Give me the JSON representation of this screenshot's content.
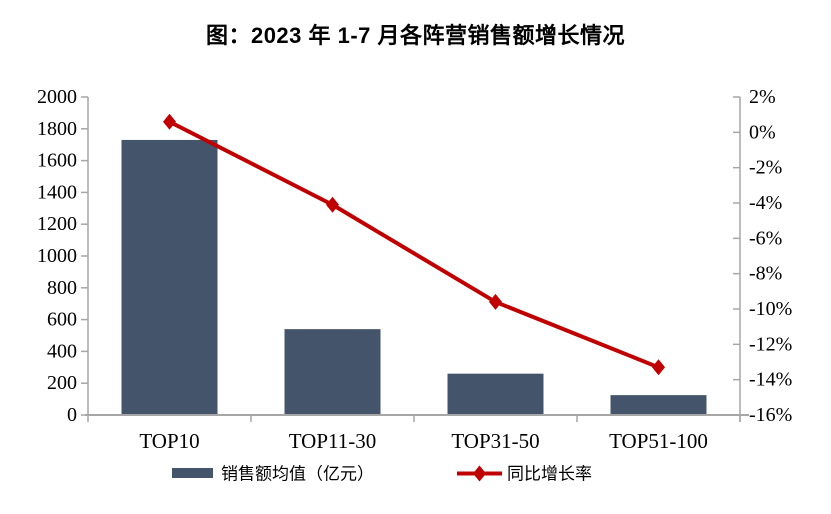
{
  "title": "图：2023 年 1-7 月各阵营销售额增长情况",
  "chart_data": {
    "type": "bar+line",
    "categories": [
      "TOP10",
      "TOP11-30",
      "TOP31-50",
      "TOP51-100"
    ],
    "series": [
      {
        "name": "销售额均值（亿元）",
        "type": "bar",
        "axis": "left",
        "values": [
          1730,
          540,
          260,
          125
        ]
      },
      {
        "name": "同比增长率",
        "type": "line",
        "axis": "right",
        "unit": "%",
        "values": [
          0.6,
          -4.1,
          -9.6,
          -13.3
        ]
      }
    ],
    "left_axis": {
      "min": 0,
      "max": 2000,
      "step": 200,
      "tick_labels": [
        "0",
        "200",
        "400",
        "600",
        "800",
        "1000",
        "1200",
        "1400",
        "1600",
        "1800",
        "2000"
      ]
    },
    "right_axis": {
      "min": -16,
      "max": 2,
      "step": 2,
      "tick_labels_top_to_bottom": [
        "2%",
        "0%",
        "-2%",
        "-4%",
        "-6%",
        "-8%",
        "-10%",
        "-12%",
        "-14%",
        "-16%"
      ]
    },
    "grid": false,
    "legend_position": "bottom"
  },
  "legend": {
    "items": [
      {
        "label": "销售额均值（亿元）",
        "swatch": "bar-swatch"
      },
      {
        "label": "同比增长率",
        "swatch": "line-diamond-swatch"
      }
    ]
  },
  "colors": {
    "bar": "#44546A",
    "line": "#C00000",
    "axis": "#A6A6A6",
    "text": "#000000",
    "background": "#FFFFFF"
  }
}
